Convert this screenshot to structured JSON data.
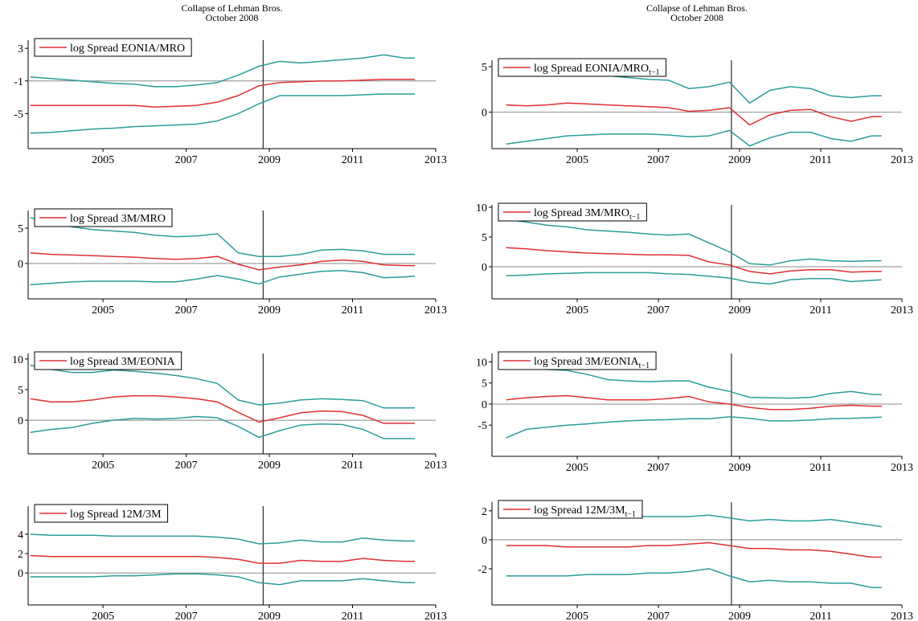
{
  "chart_data": [
    {
      "type": "line",
      "title": "Collapse of Lehman Bros.",
      "subtitle": "October 2008",
      "x": [
        2003.25,
        2003.75,
        2004.25,
        2004.75,
        2005.25,
        2005.75,
        2006.25,
        2006.75,
        2007.25,
        2007.75,
        2008.25,
        2008.75,
        2009.25,
        2009.75,
        2010.25,
        2010.75,
        2011.25,
        2011.75,
        2012.25,
        2012.5
      ],
      "xlim": [
        2003.2,
        2013
      ],
      "xticks": [
        2005,
        2007,
        2009,
        2011,
        2013
      ],
      "ylim": [
        -9.3,
        4
      ],
      "yticks": [
        3,
        -1,
        -5
      ],
      "hline": -1,
      "vline": 2008.85,
      "series": [
        {
          "name": "log Spread EONIA/MRO",
          "color": "#e03030",
          "values": [
            -4,
            -4,
            -4,
            -4,
            -4,
            -4,
            -4.2,
            -4.1,
            -4,
            -3.6,
            -2.8,
            -1.6,
            -1.2,
            -1.1,
            -1,
            -1,
            -0.9,
            -0.8,
            -0.8,
            -0.8
          ]
        },
        {
          "color": "#2a9d9a",
          "values": [
            -0.5,
            -0.7,
            -0.9,
            -1.1,
            -1.3,
            -1.4,
            -1.7,
            -1.7,
            -1.5,
            -1.2,
            -0.3,
            0.8,
            1.4,
            1.2,
            1.4,
            1.6,
            1.8,
            2.2,
            1.8,
            1.8
          ]
        },
        {
          "color": "#2a9d9a",
          "values": [
            -7.4,
            -7.3,
            -7.1,
            -6.9,
            -6.8,
            -6.6,
            -6.5,
            -6.4,
            -6.3,
            -5.9,
            -5,
            -3.8,
            -2.8,
            -2.8,
            -2.8,
            -2.8,
            -2.7,
            -2.6,
            -2.6,
            -2.6
          ]
        }
      ]
    },
    {
      "type": "line",
      "title": "Collapse of Lehman Bros.",
      "subtitle": "October 2008",
      "x": [
        2003.25,
        2003.75,
        2004.25,
        2004.75,
        2005.25,
        2005.75,
        2006.25,
        2006.75,
        2007.25,
        2007.75,
        2008.25,
        2008.75,
        2009.25,
        2009.75,
        2010.25,
        2010.75,
        2011.25,
        2011.75,
        2012.25,
        2012.5
      ],
      "xlim": [
        2002.9,
        2013
      ],
      "xticks": [
        2005,
        2007,
        2009,
        2011,
        2013
      ],
      "ylim": [
        -4,
        5.7
      ],
      "yticks": [
        5,
        0
      ],
      "hline": 0,
      "vline": 2008.8,
      "legend_subscript": "t−1",
      "series": [
        {
          "name": "log Spread EONIA/MRO",
          "color": "#e03030",
          "values": [
            0.8,
            0.7,
            0.8,
            1,
            0.9,
            0.8,
            0.7,
            0.6,
            0.5,
            0.1,
            0.2,
            0.5,
            -1.4,
            -0.3,
            0.2,
            0.3,
            -0.5,
            -1,
            -0.5,
            -0.5
          ]
        },
        {
          "color": "#2a9d9a",
          "values": [
            5,
            4.8,
            4.6,
            4.3,
            4.1,
            4,
            3.8,
            3.6,
            3.5,
            2.6,
            2.8,
            3.3,
            1,
            2.4,
            2.8,
            2.6,
            1.8,
            1.6,
            1.8,
            1.8
          ]
        },
        {
          "color": "#2a9d9a",
          "values": [
            -3.5,
            -3.2,
            -2.9,
            -2.6,
            -2.5,
            -2.4,
            -2.4,
            -2.4,
            -2.5,
            -2.7,
            -2.6,
            -2,
            -3.7,
            -2.8,
            -2.2,
            -2.2,
            -2.9,
            -3.2,
            -2.6,
            -2.6
          ]
        }
      ]
    },
    {
      "type": "line",
      "x": [
        2003.25,
        2003.75,
        2004.25,
        2004.75,
        2005.25,
        2005.75,
        2006.25,
        2006.75,
        2007.25,
        2007.75,
        2008.25,
        2008.75,
        2009.25,
        2009.75,
        2010.25,
        2010.75,
        2011.25,
        2011.75,
        2012.25,
        2012.5
      ],
      "xlim": [
        2003.2,
        2013
      ],
      "xticks": [
        2005,
        2007,
        2009,
        2011,
        2013
      ],
      "ylim": [
        -5,
        7.5
      ],
      "yticks": [
        5,
        0
      ],
      "hline": 0,
      "vline": 2008.85,
      "series": [
        {
          "name": "log Spread 3M/MRO",
          "color": "#e03030",
          "values": [
            1.5,
            1.3,
            1.2,
            1.1,
            1,
            0.9,
            0.7,
            0.6,
            0.7,
            1,
            -0.1,
            -0.9,
            -0.5,
            -0.2,
            0.3,
            0.5,
            0.3,
            -0.2,
            -0.3,
            -0.3
          ]
        },
        {
          "color": "#2a9d9a",
          "values": [
            6.5,
            5.7,
            5.2,
            4.8,
            4.6,
            4.4,
            4,
            3.8,
            3.9,
            4.2,
            1.5,
            1,
            1,
            1.3,
            1.9,
            2,
            1.8,
            1.3,
            1.3,
            1.3
          ]
        },
        {
          "color": "#2a9d9a",
          "values": [
            -3,
            -2.8,
            -2.6,
            -2.5,
            -2.5,
            -2.5,
            -2.6,
            -2.6,
            -2.2,
            -1.7,
            -2.2,
            -2.9,
            -1.9,
            -1.5,
            -1.1,
            -1,
            -1.3,
            -2,
            -1.9,
            -1.8
          ]
        }
      ]
    },
    {
      "type": "line",
      "x": [
        2003.25,
        2003.75,
        2004.25,
        2004.75,
        2005.25,
        2005.75,
        2006.25,
        2006.75,
        2007.25,
        2007.75,
        2008.25,
        2008.75,
        2009.25,
        2009.75,
        2010.25,
        2010.75,
        2011.25,
        2011.75,
        2012.25,
        2012.5
      ],
      "xlim": [
        2002.9,
        2013
      ],
      "xticks": [
        2005,
        2007,
        2009,
        2011,
        2013
      ],
      "ylim": [
        -5.4,
        10.4
      ],
      "yticks": [
        10,
        5,
        0
      ],
      "hline": 0,
      "vline": 2008.8,
      "legend_subscript": "t−1",
      "series": [
        {
          "name": "log Spread 3M/MRO",
          "color": "#e03030",
          "values": [
            3.2,
            3,
            2.7,
            2.5,
            2.3,
            2.2,
            2.1,
            2,
            2,
            1.9,
            0.8,
            0.3,
            -0.8,
            -1.2,
            -0.7,
            -0.5,
            -0.5,
            -0.9,
            -0.8,
            -0.8
          ]
        },
        {
          "color": "#2a9d9a",
          "values": [
            8,
            7.5,
            7,
            6.7,
            6.2,
            6,
            5.8,
            5.5,
            5.3,
            5.5,
            4,
            2.5,
            0.5,
            0.3,
            1,
            1.3,
            1,
            0.9,
            1,
            1
          ]
        },
        {
          "color": "#2a9d9a",
          "values": [
            -1.5,
            -1.4,
            -1.2,
            -1.1,
            -1,
            -1,
            -1,
            -1,
            -1.2,
            -1.3,
            -1.6,
            -1.9,
            -2.6,
            -2.9,
            -2.2,
            -2,
            -2,
            -2.5,
            -2.3,
            -2.2
          ]
        }
      ]
    },
    {
      "type": "line",
      "x": [
        2003.25,
        2003.75,
        2004.25,
        2004.75,
        2005.25,
        2005.75,
        2006.25,
        2006.75,
        2007.25,
        2007.75,
        2008.25,
        2008.75,
        2009.25,
        2009.75,
        2010.25,
        2010.75,
        2011.25,
        2011.75,
        2012.25,
        2012.5
      ],
      "xlim": [
        2003.2,
        2013
      ],
      "xticks": [
        2005,
        2007,
        2009,
        2011,
        2013
      ],
      "ylim": [
        -5.5,
        10.9
      ],
      "yticks": [
        10,
        5,
        0
      ],
      "hline": 0,
      "vline": 2008.85,
      "series": [
        {
          "name": "log Spread 3M/EONIA",
          "color": "#e03030",
          "values": [
            3.5,
            3,
            3,
            3.3,
            3.8,
            4,
            4,
            3.8,
            3.5,
            3,
            1.3,
            -0.3,
            0.4,
            1.2,
            1.5,
            1.4,
            0.8,
            -0.5,
            -0.5,
            -0.5
          ]
        },
        {
          "color": "#2a9d9a",
          "values": [
            9,
            8.3,
            7.8,
            7.8,
            8.2,
            8,
            7.7,
            7.3,
            6.8,
            6,
            3.3,
            2.5,
            2.8,
            3.3,
            3.5,
            3.4,
            3.2,
            2,
            2,
            2
          ]
        },
        {
          "color": "#2a9d9a",
          "values": [
            -2,
            -1.5,
            -1.2,
            -0.5,
            0,
            0.3,
            0.2,
            0.3,
            0.6,
            0.4,
            -1,
            -2.8,
            -1.7,
            -0.8,
            -0.6,
            -0.7,
            -1.5,
            -3,
            -3,
            -3
          ]
        }
      ]
    },
    {
      "type": "line",
      "x": [
        2003.25,
        2003.75,
        2004.25,
        2004.75,
        2005.25,
        2005.75,
        2006.25,
        2006.75,
        2007.25,
        2007.75,
        2008.25,
        2008.75,
        2009.25,
        2009.75,
        2010.25,
        2010.75,
        2011.25,
        2011.75,
        2012.25,
        2012.5
      ],
      "xlim": [
        2002.9,
        2013
      ],
      "xticks": [
        2005,
        2007,
        2009,
        2011,
        2013
      ],
      "ylim": [
        -12.4,
        12
      ],
      "yticks": [
        10,
        5,
        0,
        -5
      ],
      "hline": 0,
      "vline": 2008.8,
      "legend_subscript": "t−1",
      "series": [
        {
          "name": "log Spread 3M/EONIA",
          "color": "#e03030",
          "values": [
            1,
            1.5,
            1.8,
            2,
            1.5,
            1,
            1,
            1,
            1.3,
            1.8,
            0.5,
            0,
            -0.8,
            -1.3,
            -1.3,
            -1,
            -0.5,
            -0.3,
            -0.5,
            -0.5
          ]
        },
        {
          "color": "#2a9d9a",
          "values": [
            9,
            8.5,
            8.2,
            8,
            7,
            5.8,
            5.5,
            5.3,
            5.5,
            5.5,
            4,
            3,
            1.6,
            1.5,
            1.4,
            1.6,
            2.5,
            3,
            2.3,
            2.2
          ]
        },
        {
          "color": "#2a9d9a",
          "values": [
            -8,
            -6,
            -5.5,
            -5,
            -4.7,
            -4.3,
            -4,
            -3.8,
            -3.7,
            -3.5,
            -3.5,
            -3,
            -3.4,
            -4,
            -4,
            -3.8,
            -3.5,
            -3.4,
            -3.2,
            -3.1
          ]
        }
      ]
    },
    {
      "type": "line",
      "x": [
        2003.25,
        2003.75,
        2004.25,
        2004.75,
        2005.25,
        2005.75,
        2006.25,
        2006.75,
        2007.25,
        2007.75,
        2008.25,
        2008.75,
        2009.25,
        2009.75,
        2010.25,
        2010.75,
        2011.25,
        2011.75,
        2012.25,
        2012.5
      ],
      "xlim": [
        2003.2,
        2013
      ],
      "xticks": [
        2005,
        2007,
        2009,
        2011,
        2013
      ],
      "ylim": [
        -3.3,
        6.9
      ],
      "yticks": [
        4,
        2,
        0
      ],
      "hline": 0,
      "vline": 2008.85,
      "series": [
        {
          "name": "log Spread 12M/3M",
          "color": "#e03030",
          "values": [
            1.8,
            1.7,
            1.7,
            1.7,
            1.7,
            1.7,
            1.7,
            1.7,
            1.7,
            1.6,
            1.4,
            1,
            1,
            1.3,
            1.2,
            1.2,
            1.5,
            1.3,
            1.2,
            1.2
          ]
        },
        {
          "color": "#2a9d9a",
          "values": [
            4,
            3.9,
            3.9,
            3.9,
            3.8,
            3.8,
            3.8,
            3.8,
            3.8,
            3.7,
            3.5,
            3,
            3.1,
            3.4,
            3.2,
            3.2,
            3.6,
            3.4,
            3.3,
            3.3
          ]
        },
        {
          "color": "#2a9d9a",
          "values": [
            -0.4,
            -0.4,
            -0.4,
            -0.4,
            -0.3,
            -0.3,
            -0.2,
            -0.1,
            -0.1,
            -0.2,
            -0.4,
            -1,
            -1.2,
            -0.8,
            -0.8,
            -0.8,
            -0.6,
            -0.8,
            -1,
            -1
          ]
        }
      ]
    },
    {
      "type": "line",
      "x": [
        2003.25,
        2003.75,
        2004.25,
        2004.75,
        2005.25,
        2005.75,
        2006.25,
        2006.75,
        2007.25,
        2007.75,
        2008.25,
        2008.75,
        2009.25,
        2009.75,
        2010.25,
        2010.75,
        2011.25,
        2011.75,
        2012.25,
        2012.5
      ],
      "xlim": [
        2002.9,
        2013
      ],
      "xticks": [
        2005,
        2007,
        2009,
        2011,
        2013
      ],
      "ylim": [
        -4.5,
        2.6
      ],
      "yticks": [
        2,
        0,
        -2
      ],
      "hline": 0,
      "vline": 2008.8,
      "legend_subscript": "t−1",
      "series": [
        {
          "name": "log Spread 12M/3M",
          "color": "#e03030",
          "values": [
            -0.4,
            -0.4,
            -0.4,
            -0.5,
            -0.5,
            -0.5,
            -0.5,
            -0.4,
            -0.4,
            -0.3,
            -0.2,
            -0.4,
            -0.6,
            -0.6,
            -0.7,
            -0.7,
            -0.8,
            -1,
            -1.2,
            -1.2
          ]
        },
        {
          "color": "#2a9d9a",
          "values": [
            1.6,
            1.6,
            1.6,
            1.6,
            1.6,
            1.6,
            1.6,
            1.6,
            1.6,
            1.6,
            1.7,
            1.5,
            1.3,
            1.4,
            1.3,
            1.3,
            1.4,
            1.2,
            1,
            0.9
          ]
        },
        {
          "color": "#2a9d9a",
          "values": [
            -2.5,
            -2.5,
            -2.5,
            -2.5,
            -2.4,
            -2.4,
            -2.4,
            -2.3,
            -2.3,
            -2.2,
            -2,
            -2.5,
            -2.9,
            -2.8,
            -2.9,
            -2.9,
            -3,
            -3,
            -3.3,
            -3.3
          ]
        }
      ]
    }
  ]
}
